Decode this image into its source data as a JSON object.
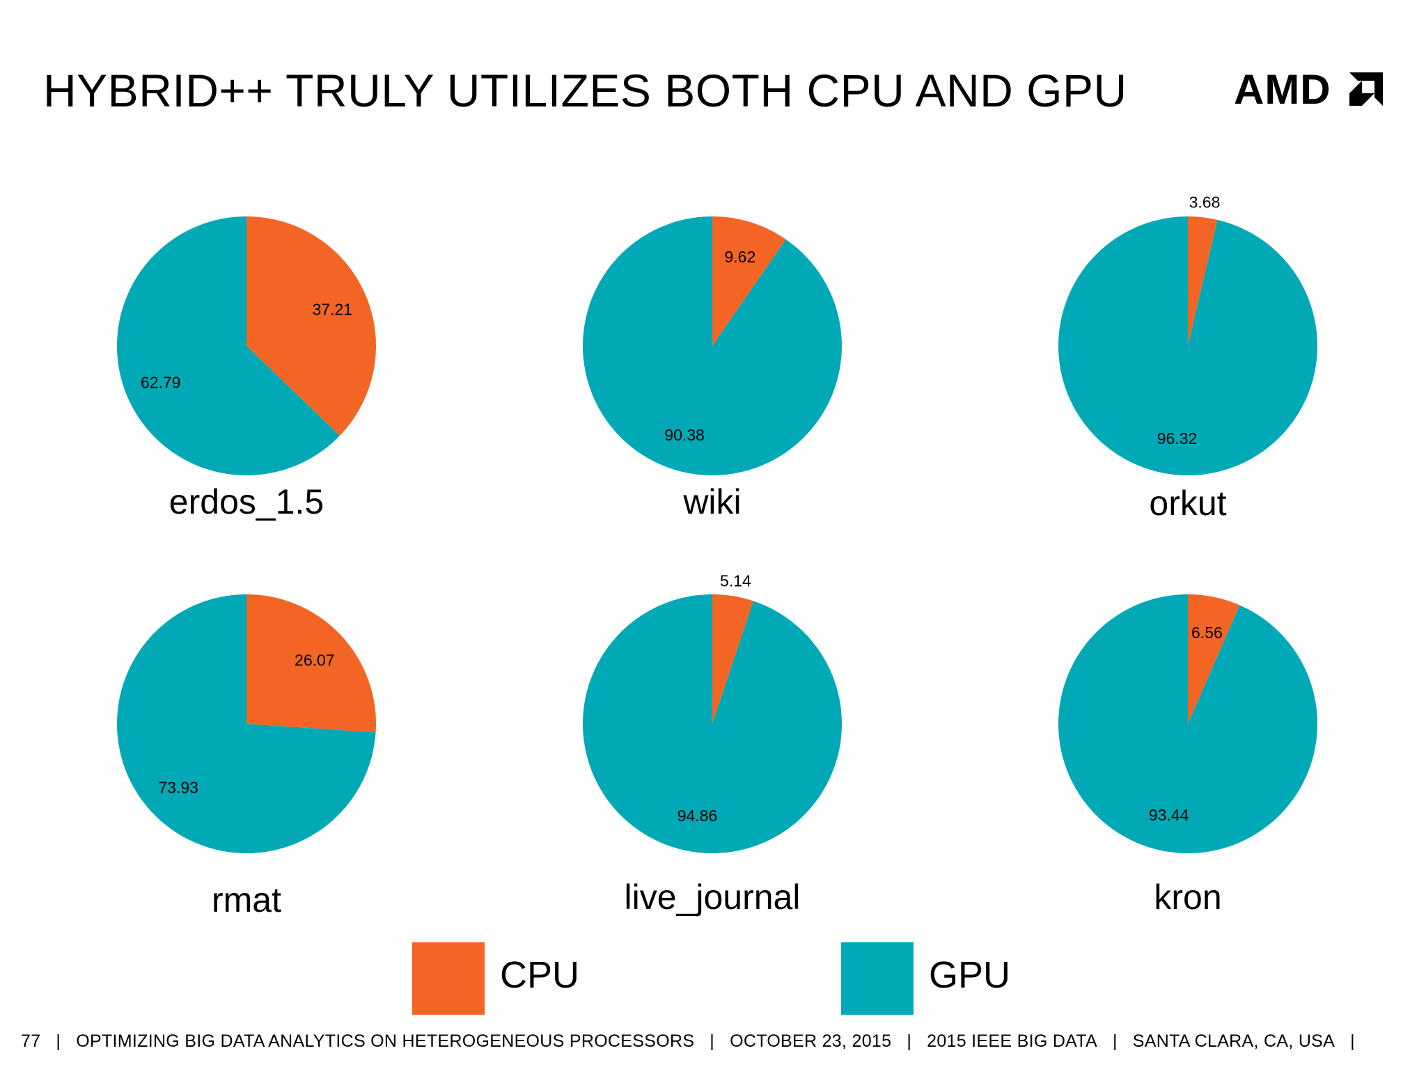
{
  "slide": {
    "title": "HYBRID++ TRULY UTILIZES BOTH CPU AND GPU",
    "logo_text": "AMD"
  },
  "legend": [
    {
      "label": "CPU",
      "color": "#f26524"
    },
    {
      "label": "GPU",
      "color": "#00a9b5"
    }
  ],
  "footer": {
    "page": "77",
    "talk": "OPTIMIZING BIG DATA ANALYTICS ON HETEROGENEOUS PROCESSORS",
    "date": "OCTOBER 23, 2015",
    "venue": "2015 IEEE BIG DATA",
    "location": "SANTA CLARA, CA, USA"
  },
  "chart_data": [
    {
      "type": "pie",
      "title": "erdos_1.5",
      "slices": [
        {
          "name": "CPU",
          "value": 37.21
        },
        {
          "name": "GPU",
          "value": 62.79
        }
      ],
      "labels": [
        "37.21",
        "62.79"
      ]
    },
    {
      "type": "pie",
      "title": "wiki",
      "slices": [
        {
          "name": "CPU",
          "value": 9.62
        },
        {
          "name": "GPU",
          "value": 90.38
        }
      ],
      "labels": [
        "9.62",
        "90.38"
      ]
    },
    {
      "type": "pie",
      "title": "orkut",
      "slices": [
        {
          "name": "CPU",
          "value": 3.68
        },
        {
          "name": "GPU",
          "value": 96.32
        }
      ],
      "labels": [
        "3.68",
        "96.32"
      ]
    },
    {
      "type": "pie",
      "title": "rmat",
      "slices": [
        {
          "name": "CPU",
          "value": 26.07
        },
        {
          "name": "GPU",
          "value": 73.93
        }
      ],
      "labels": [
        "26.07",
        "73.93"
      ]
    },
    {
      "type": "pie",
      "title": "live_journal",
      "slices": [
        {
          "name": "CPU",
          "value": 5.14
        },
        {
          "name": "GPU",
          "value": 94.86
        }
      ],
      "labels": [
        "5.14",
        "94.86"
      ]
    },
    {
      "type": "pie",
      "title": "kron",
      "slices": [
        {
          "name": "CPU",
          "value": 6.56
        },
        {
          "name": "GPU",
          "value": 93.44
        }
      ],
      "labels": [
        "6.56",
        "93.44"
      ]
    }
  ]
}
